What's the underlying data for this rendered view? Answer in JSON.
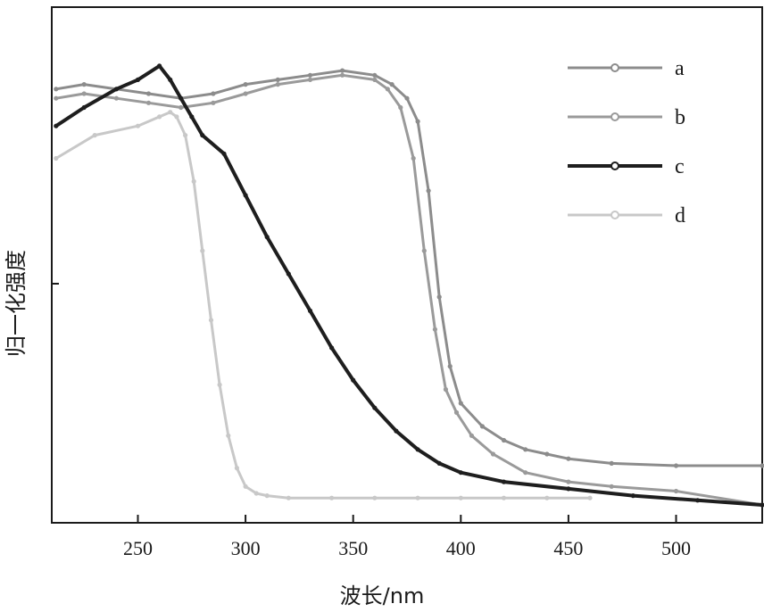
{
  "chart_data": {
    "type": "line",
    "xlabel": "波长/nm",
    "ylabel": "归一化强度",
    "xlim": [
      210,
      540
    ],
    "ylim": [
      0,
      1.0
    ],
    "xticks": [
      250,
      300,
      350,
      400,
      450,
      500
    ],
    "y_axis_tick_labels": false,
    "grid": false,
    "legend": "top-right",
    "colors": {
      "a": "#8c8c8c",
      "b": "#9a9a9a",
      "c": "#1e1e1e",
      "d": "#c8c8c8"
    },
    "series": [
      {
        "name": "a",
        "x": [
          212,
          225,
          240,
          255,
          270,
          285,
          300,
          315,
          330,
          345,
          360,
          368,
          375,
          380,
          385,
          390,
          395,
          400,
          410,
          420,
          430,
          440,
          450,
          470,
          500,
          540
        ],
        "y": [
          0.9,
          0.91,
          0.9,
          0.89,
          0.88,
          0.89,
          0.91,
          0.92,
          0.93,
          0.94,
          0.93,
          0.91,
          0.88,
          0.83,
          0.68,
          0.45,
          0.3,
          0.22,
          0.17,
          0.14,
          0.12,
          0.11,
          0.1,
          0.09,
          0.085,
          0.085
        ]
      },
      {
        "name": "b",
        "x": [
          212,
          225,
          240,
          255,
          270,
          285,
          300,
          315,
          330,
          345,
          360,
          366,
          372,
          378,
          383,
          388,
          393,
          398,
          405,
          415,
          430,
          450,
          470,
          500,
          540
        ],
        "y": [
          0.88,
          0.89,
          0.88,
          0.87,
          0.86,
          0.87,
          0.89,
          0.91,
          0.92,
          0.93,
          0.92,
          0.9,
          0.86,
          0.75,
          0.55,
          0.38,
          0.25,
          0.2,
          0.15,
          0.11,
          0.07,
          0.05,
          0.04,
          0.03,
          0.0
        ]
      },
      {
        "name": "c",
        "x": [
          212,
          225,
          240,
          250,
          260,
          265,
          270,
          275,
          280,
          290,
          300,
          310,
          320,
          330,
          340,
          350,
          360,
          370,
          380,
          390,
          400,
          420,
          450,
          480,
          510,
          540
        ],
        "y": [
          0.82,
          0.86,
          0.9,
          0.92,
          0.95,
          0.92,
          0.88,
          0.84,
          0.8,
          0.76,
          0.67,
          0.58,
          0.5,
          0.42,
          0.34,
          0.27,
          0.21,
          0.16,
          0.12,
          0.09,
          0.07,
          0.05,
          0.035,
          0.02,
          0.01,
          0.0
        ]
      },
      {
        "name": "d",
        "x": [
          212,
          230,
          250,
          260,
          265,
          268,
          272,
          276,
          280,
          284,
          288,
          292,
          296,
          300,
          305,
          310,
          320,
          340,
          360,
          380,
          400,
          420,
          440,
          460
        ],
        "y": [
          0.75,
          0.8,
          0.82,
          0.84,
          0.85,
          0.84,
          0.8,
          0.7,
          0.55,
          0.4,
          0.26,
          0.15,
          0.08,
          0.04,
          0.025,
          0.02,
          0.015,
          0.015,
          0.015,
          0.015,
          0.015,
          0.015,
          0.015,
          0.015
        ]
      }
    ]
  }
}
